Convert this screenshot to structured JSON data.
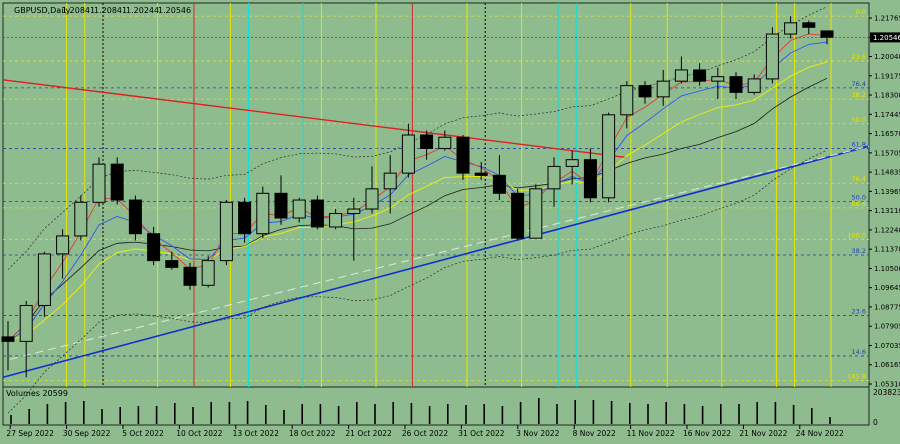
{
  "chart_data": {
    "type": "candlestick",
    "title": "GBPUSD,Daily",
    "ohlc_header": [
      "1.20841",
      "1.20841",
      "1.20244",
      "1.20546"
    ],
    "volume_label": "Volumes 20599",
    "volume_scale_label": "203823",
    "volume_zero_label": "0",
    "current_price": "1.20546",
    "price_ticks": [
      "1.21765",
      "1.20910",
      "1.20040",
      "1.19175",
      "1.18300",
      "1.17445",
      "1.16570",
      "1.15705",
      "1.14835",
      "1.13965",
      "1.13110",
      "1.12240",
      "1.11370",
      "1.10500",
      "1.09645",
      "1.08775",
      "1.07905",
      "1.07035",
      "1.06165",
      "1.05310"
    ],
    "date_labels": [
      "27 Sep 2022",
      "30 Sep 2022",
      "5 Oct 2022",
      "10 Oct 2022",
      "13 Oct 2022",
      "18 Oct 2022",
      "21 Oct 2022",
      "26 Oct 2022",
      "31 Oct 2022",
      "3 Nov 2022",
      "8 Nov 2022",
      "11 Nov 2022",
      "16 Nov 2022",
      "21 Nov 2022",
      "24 Nov 2022"
    ],
    "fib_levels": [
      {
        "label": "0.0",
        "price": 1.215,
        "color": "#e6e600"
      },
      {
        "label": "23.6",
        "price": 1.195,
        "color": "#e6e600"
      },
      {
        "label": "76.4",
        "price": 1.183,
        "color": "#1f3fbf"
      },
      {
        "label": "38.2",
        "price": 1.178,
        "color": "#e6e600"
      },
      {
        "label": "50.0",
        "price": 1.167,
        "color": "#e6e600"
      },
      {
        "label": "61.8",
        "price": 1.156,
        "color": "#1f3fbf"
      },
      {
        "label": "76.4",
        "price": 1.1405,
        "color": "#e6e600"
      },
      {
        "label": "50.0",
        "price": 1.1323,
        "color": "#1f3fbf"
      },
      {
        "label": "88.6",
        "price": 1.1295,
        "color": "#e6e600"
      },
      {
        "label": "100.0",
        "price": 1.1155,
        "color": "#e6e600"
      },
      {
        "label": "38.2",
        "price": 1.1085,
        "color": "#1f3fbf"
      },
      {
        "label": "23.6",
        "price": 1.0815,
        "color": "#1f3fbf"
      },
      {
        "label": "14.6",
        "price": 1.0635,
        "color": "#1f3fbf"
      },
      {
        "label": "161.8",
        "price": 1.0525,
        "color": "#e6e600"
      }
    ],
    "candles": [
      {
        "o": 1.072,
        "h": 1.079,
        "l": 1.057,
        "c": 1.07
      },
      {
        "o": 1.07,
        "h": 1.088,
        "l": 1.054,
        "c": 1.086
      },
      {
        "o": 1.086,
        "h": 1.11,
        "l": 1.081,
        "c": 1.109
      },
      {
        "o": 1.109,
        "h": 1.12,
        "l": 1.098,
        "c": 1.117
      },
      {
        "o": 1.117,
        "h": 1.135,
        "l": 1.115,
        "c": 1.132
      },
      {
        "o": 1.132,
        "h": 1.152,
        "l": 1.13,
        "c": 1.149
      },
      {
        "o": 1.149,
        "h": 1.152,
        "l": 1.131,
        "c": 1.133
      },
      {
        "o": 1.133,
        "h": 1.135,
        "l": 1.115,
        "c": 1.118
      },
      {
        "o": 1.118,
        "h": 1.121,
        "l": 1.104,
        "c": 1.106
      },
      {
        "o": 1.106,
        "h": 1.11,
        "l": 1.102,
        "c": 1.103
      },
      {
        "o": 1.103,
        "h": 1.105,
        "l": 1.093,
        "c": 1.095
      },
      {
        "o": 1.095,
        "h": 1.108,
        "l": 1.094,
        "c": 1.106
      },
      {
        "o": 1.106,
        "h": 1.133,
        "l": 1.104,
        "c": 1.132
      },
      {
        "o": 1.132,
        "h": 1.134,
        "l": 1.114,
        "c": 1.118
      },
      {
        "o": 1.118,
        "h": 1.139,
        "l": 1.116,
        "c": 1.136
      },
      {
        "o": 1.136,
        "h": 1.144,
        "l": 1.122,
        "c": 1.125
      },
      {
        "o": 1.125,
        "h": 1.134,
        "l": 1.123,
        "c": 1.133
      },
      {
        "o": 1.133,
        "h": 1.135,
        "l": 1.12,
        "c": 1.121
      },
      {
        "o": 1.121,
        "h": 1.129,
        "l": 1.12,
        "c": 1.127
      },
      {
        "o": 1.127,
        "h": 1.134,
        "l": 1.106,
        "c": 1.129
      },
      {
        "o": 1.129,
        "h": 1.148,
        "l": 1.127,
        "c": 1.138
      },
      {
        "o": 1.138,
        "h": 1.153,
        "l": 1.127,
        "c": 1.145
      },
      {
        "o": 1.145,
        "h": 1.167,
        "l": 1.143,
        "c": 1.162
      },
      {
        "o": 1.162,
        "h": 1.164,
        "l": 1.151,
        "c": 1.156
      },
      {
        "o": 1.156,
        "h": 1.164,
        "l": 1.155,
        "c": 1.161
      },
      {
        "o": 1.161,
        "h": 1.162,
        "l": 1.142,
        "c": 1.145
      },
      {
        "o": 1.145,
        "h": 1.15,
        "l": 1.142,
        "c": 1.144
      },
      {
        "o": 1.144,
        "h": 1.153,
        "l": 1.133,
        "c": 1.136
      },
      {
        "o": 1.136,
        "h": 1.138,
        "l": 1.115,
        "c": 1.116
      },
      {
        "o": 1.116,
        "h": 1.14,
        "l": 1.116,
        "c": 1.138
      },
      {
        "o": 1.138,
        "h": 1.152,
        "l": 1.13,
        "c": 1.148
      },
      {
        "o": 1.148,
        "h": 1.155,
        "l": 1.14,
        "c": 1.151
      },
      {
        "o": 1.151,
        "h": 1.156,
        "l": 1.132,
        "c": 1.134
      },
      {
        "o": 1.134,
        "h": 1.172,
        "l": 1.132,
        "c": 1.171
      },
      {
        "o": 1.171,
        "h": 1.186,
        "l": 1.165,
        "c": 1.184
      },
      {
        "o": 1.184,
        "h": 1.186,
        "l": 1.176,
        "c": 1.179
      },
      {
        "o": 1.179,
        "h": 1.191,
        "l": 1.175,
        "c": 1.186
      },
      {
        "o": 1.186,
        "h": 1.197,
        "l": 1.185,
        "c": 1.191
      },
      {
        "o": 1.191,
        "h": 1.194,
        "l": 1.184,
        "c": 1.186
      },
      {
        "o": 1.186,
        "h": 1.192,
        "l": 1.178,
        "c": 1.188
      },
      {
        "o": 1.188,
        "h": 1.19,
        "l": 1.178,
        "c": 1.181
      },
      {
        "o": 1.181,
        "h": 1.189,
        "l": 1.18,
        "c": 1.187
      },
      {
        "o": 1.187,
        "h": 1.21,
        "l": 1.185,
        "c": 1.207
      },
      {
        "o": 1.207,
        "h": 1.215,
        "l": 1.205,
        "c": 1.212
      },
      {
        "o": 1.212,
        "h": 1.213,
        "l": 1.207,
        "c": 1.21
      },
      {
        "o": 1.2084,
        "h": 1.2084,
        "l": 1.2024,
        "c": 1.2055
      }
    ],
    "volumes": [
      9,
      15,
      20,
      22,
      23,
      15,
      17,
      18,
      18,
      21,
      17,
      22,
      22,
      23,
      19,
      14,
      20,
      20,
      18,
      22,
      20,
      22,
      21,
      18,
      20,
      19,
      20,
      18,
      22,
      26,
      20,
      24,
      24,
      23,
      21,
      20,
      22,
      20,
      18,
      20,
      20,
      22,
      22,
      19,
      16,
      7
    ]
  }
}
